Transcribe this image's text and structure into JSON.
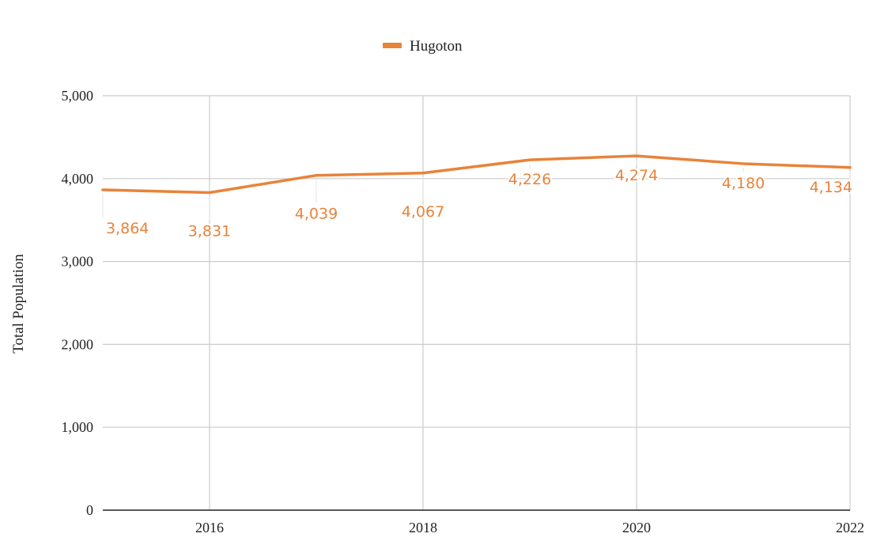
{
  "chart_data": {
    "type": "line",
    "x": [
      2015,
      2016,
      2017,
      2018,
      2019,
      2020,
      2021,
      2022
    ],
    "series": [
      {
        "name": "Hugoton",
        "values": [
          3864,
          3831,
          4039,
          4067,
          4226,
          4274,
          4180,
          4134
        ],
        "data_labels": [
          "3,864",
          "3,831",
          "4,039",
          "4,067",
          "4,226",
          "4,274",
          "4,180",
          "4,134"
        ],
        "color": "#e8833a"
      }
    ],
    "xlim": [
      2015,
      2022
    ],
    "xticks": [
      2016,
      2018,
      2020,
      2022
    ],
    "xtick_labels": [
      "2016",
      "2018",
      "2020",
      "2022"
    ],
    "ylim": [
      0,
      5000
    ],
    "yticks": [
      0,
      1000,
      2000,
      3000,
      4000,
      5000
    ],
    "ytick_labels": [
      "0",
      "1,000",
      "2,000",
      "3,000",
      "4,000",
      "5,000"
    ],
    "ylabel": "Total Population",
    "xlabel": "",
    "legend_position": "top-center",
    "grid": true,
    "colors": {
      "series": "#e8833a",
      "grid": "#cccccc",
      "axis": "#222222",
      "text": "#222222"
    }
  }
}
